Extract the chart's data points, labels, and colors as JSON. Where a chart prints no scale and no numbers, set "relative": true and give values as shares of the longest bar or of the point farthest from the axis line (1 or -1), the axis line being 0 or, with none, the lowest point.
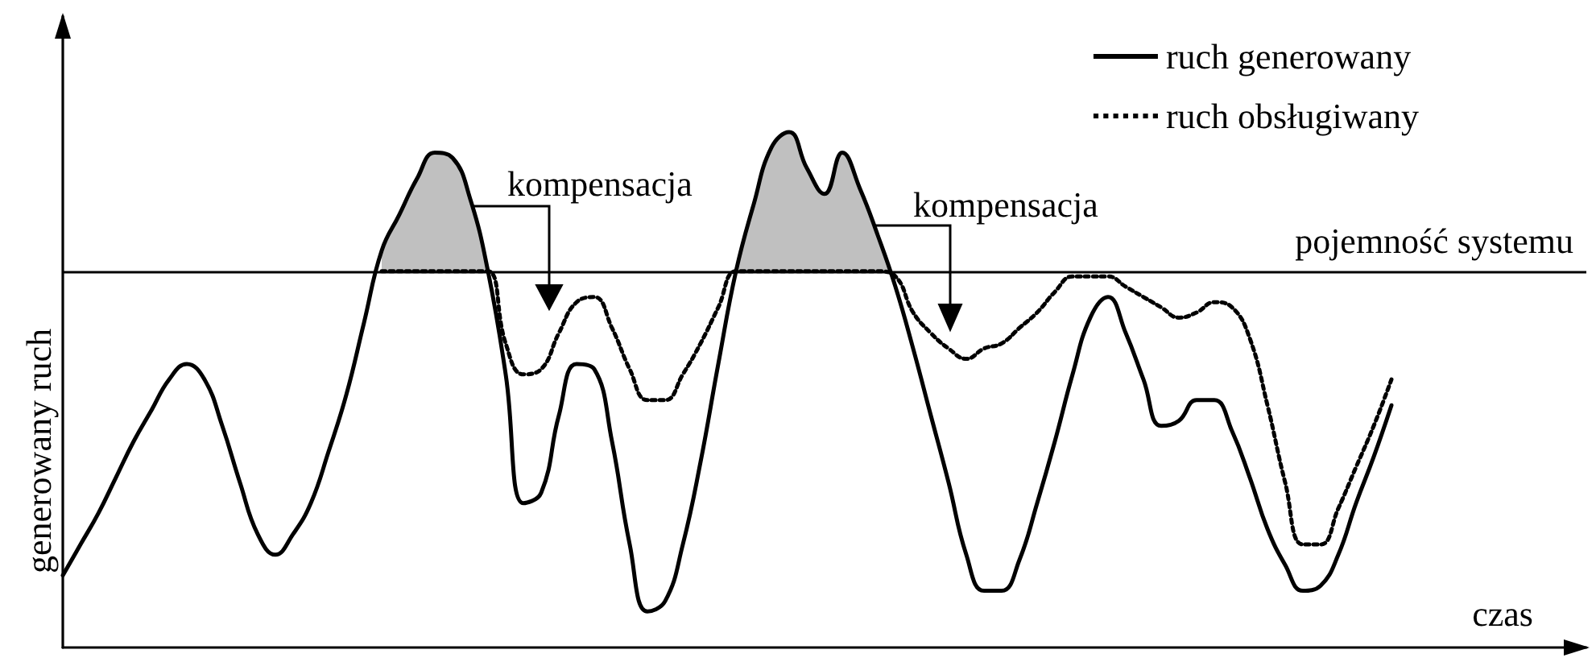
{
  "chart_data": {
    "type": "line",
    "relative": true,
    "xlabel": "czas",
    "ylabel": "generowany ruch",
    "categories": [
      null,
      null,
      null,
      null,
      null,
      null,
      null,
      null,
      null,
      null,
      null,
      null,
      null,
      null,
      null,
      null,
      null,
      null,
      null,
      null,
      null,
      null,
      null,
      null,
      null,
      null,
      null,
      null,
      null,
      null,
      null,
      null,
      null,
      null,
      null,
      null,
      null,
      null,
      null,
      null,
      null,
      null,
      null,
      null,
      null,
      null,
      null,
      null,
      null,
      null,
      null,
      null,
      null,
      null,
      null,
      null,
      null,
      null,
      null,
      null,
      null,
      null,
      null,
      null,
      null,
      null,
      null,
      null,
      null,
      null,
      null,
      null,
      null,
      null,
      null,
      null,
      null,
      null,
      null,
      null,
      null,
      null,
      null,
      null,
      null,
      null,
      null
    ],
    "series": [
      {
        "name": "ruch generowany",
        "color": "#000000",
        "line_style": "solid",
        "values": [
          0.14,
          0.2,
          0.26,
          0.33,
          0.4,
          0.46,
          0.52,
          0.55,
          0.52,
          0.43,
          0.32,
          0.22,
          0.18,
          0.22,
          0.28,
          0.38,
          0.49,
          0.63,
          0.77,
          0.84,
          0.91,
          0.96,
          0.95,
          0.87,
          0.73,
          0.53,
          0.28,
          0.3,
          0.45,
          0.55,
          0.54,
          0.4,
          0.2,
          0.07,
          0.09,
          0.2,
          0.36,
          0.55,
          0.73,
          0.86,
          0.97,
          1,
          0.93,
          0.88,
          0.96,
          0.89,
          0.8,
          0.7,
          0.58,
          0.45,
          0.32,
          0.18,
          0.11,
          0.11,
          0.17,
          0.28,
          0.4,
          0.53,
          0.64,
          0.68,
          0.61,
          0.52,
          0.43,
          0.44,
          0.48,
          0.48,
          0.42,
          0.33,
          0.23,
          0.16,
          0.11,
          0.12,
          0.18,
          0.28,
          0.37,
          0.47,
          null,
          null,
          null,
          null,
          null,
          null,
          null,
          null,
          null,
          null,
          null
        ]
      },
      {
        "name": "ruch obsługiwany",
        "color": "#000000",
        "line_style": "dotted",
        "values": [
          null,
          null,
          null,
          null,
          null,
          null,
          null,
          null,
          null,
          null,
          null,
          null,
          null,
          null,
          null,
          null,
          null,
          null,
          0.73,
          0.73,
          0.73,
          0.73,
          0.73,
          0.73,
          0.73,
          0.59,
          0.53,
          0.54,
          0.61,
          0.67,
          0.68,
          0.62,
          0.54,
          0.48,
          0.48,
          0.53,
          0.59,
          0.66,
          0.73,
          0.73,
          0.73,
          0.73,
          0.73,
          0.73,
          0.73,
          0.73,
          0.73,
          0.72,
          0.65,
          0.61,
          0.58,
          0.56,
          0.58,
          0.59,
          0.62,
          0.65,
          0.69,
          0.72,
          0.72,
          0.72,
          0.7,
          0.68,
          0.66,
          0.64,
          0.65,
          0.67,
          0.66,
          0.6,
          0.47,
          0.32,
          0.2,
          0.2,
          0.27,
          0.35,
          0.43,
          0.52,
          null,
          null,
          null,
          null,
          null,
          null,
          null,
          null,
          null,
          null,
          null
        ]
      },
      {
        "type": "area",
        "color": "#c0c0c0",
        "values": [
          null,
          null,
          null,
          null,
          null,
          null,
          null,
          null,
          null,
          null,
          null,
          null,
          null,
          null,
          null,
          null,
          null,
          null,
          0.77,
          0.84,
          0.91,
          0.96,
          0.95,
          0.87,
          0.73,
          null,
          null,
          null,
          null,
          null,
          null,
          null,
          null,
          null,
          null,
          null,
          null,
          null,
          0.73,
          0.86,
          0.97,
          1,
          0.93,
          0.88,
          0.96,
          0.89,
          0.8,
          0.7,
          null,
          null,
          null,
          null,
          null,
          null,
          null,
          null,
          null,
          null,
          null,
          null,
          null,
          null,
          null,
          null,
          null,
          null,
          null,
          null,
          null,
          null,
          null,
          null,
          null,
          null,
          null,
          null,
          null,
          null,
          null,
          null,
          null,
          null,
          null,
          null,
          null,
          null,
          null
        ]
      }
    ],
    "ref_lines": [
      {
        "axis": "y",
        "value": 0.73,
        "label": "pojemność systemu",
        "color": "#000000",
        "line_style": "solid"
      }
    ],
    "annotations": [
      "kompensacja",
      "kompensacja"
    ],
    "legend": "top right",
    "marker": "none"
  }
}
